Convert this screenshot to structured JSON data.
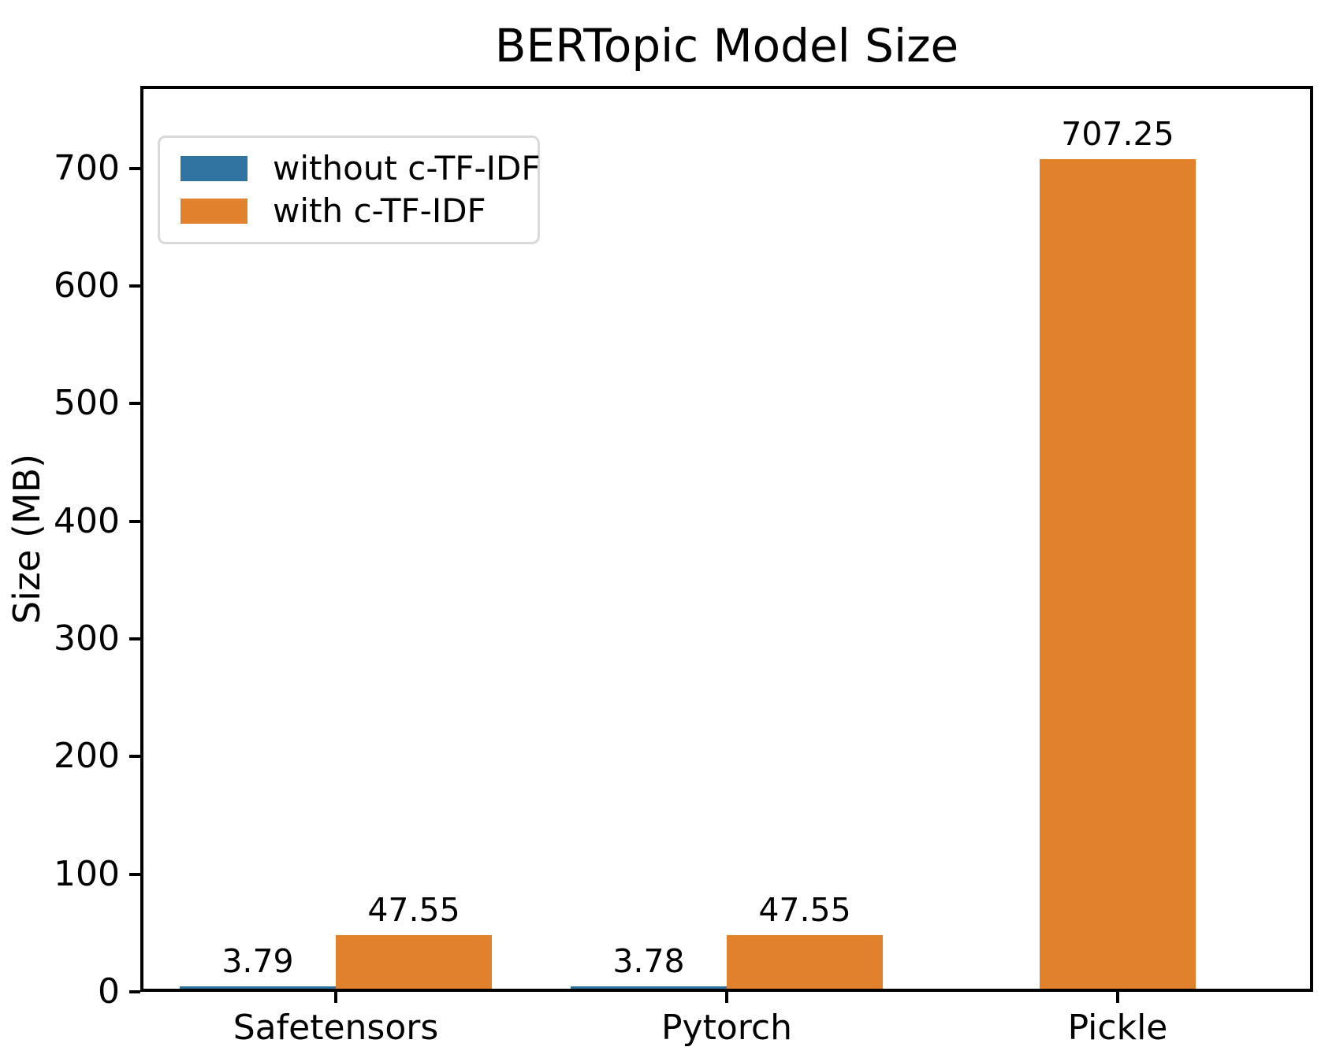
{
  "figure": {
    "title": "BERTopic Model Size",
    "ylabel": "Size (MB)"
  },
  "legend": {
    "position": "upper left",
    "items": [
      {
        "label": "without c-TF-IDF",
        "color": "#3274a1"
      },
      {
        "label": "with c-TF-IDF",
        "color": "#e1812c"
      }
    ]
  },
  "chart_data": {
    "type": "bar",
    "title": "BERTopic Model Size",
    "xlabel": "",
    "ylabel": "Size (MB)",
    "categories": [
      "Safetensors",
      "Pytorch",
      "Pickle"
    ],
    "series": [
      {
        "name": "without c-TF-IDF",
        "color": "#3274a1",
        "values": [
          3.79,
          3.78,
          null
        ]
      },
      {
        "name": "with c-TF-IDF",
        "color": "#e1812c",
        "values": [
          47.55,
          47.55,
          707.25
        ]
      }
    ],
    "bar_value_labels": [
      [
        "3.79",
        "3.78",
        null
      ],
      [
        "47.55",
        "47.55",
        "707.25"
      ]
    ],
    "ylim": [
      0,
      770
    ],
    "yticks": [
      0,
      100,
      200,
      300,
      400,
      500,
      600,
      700
    ],
    "grid": false,
    "legend_position": "upper left",
    "axis_color": "#000000",
    "background_color": "#ffffff"
  }
}
